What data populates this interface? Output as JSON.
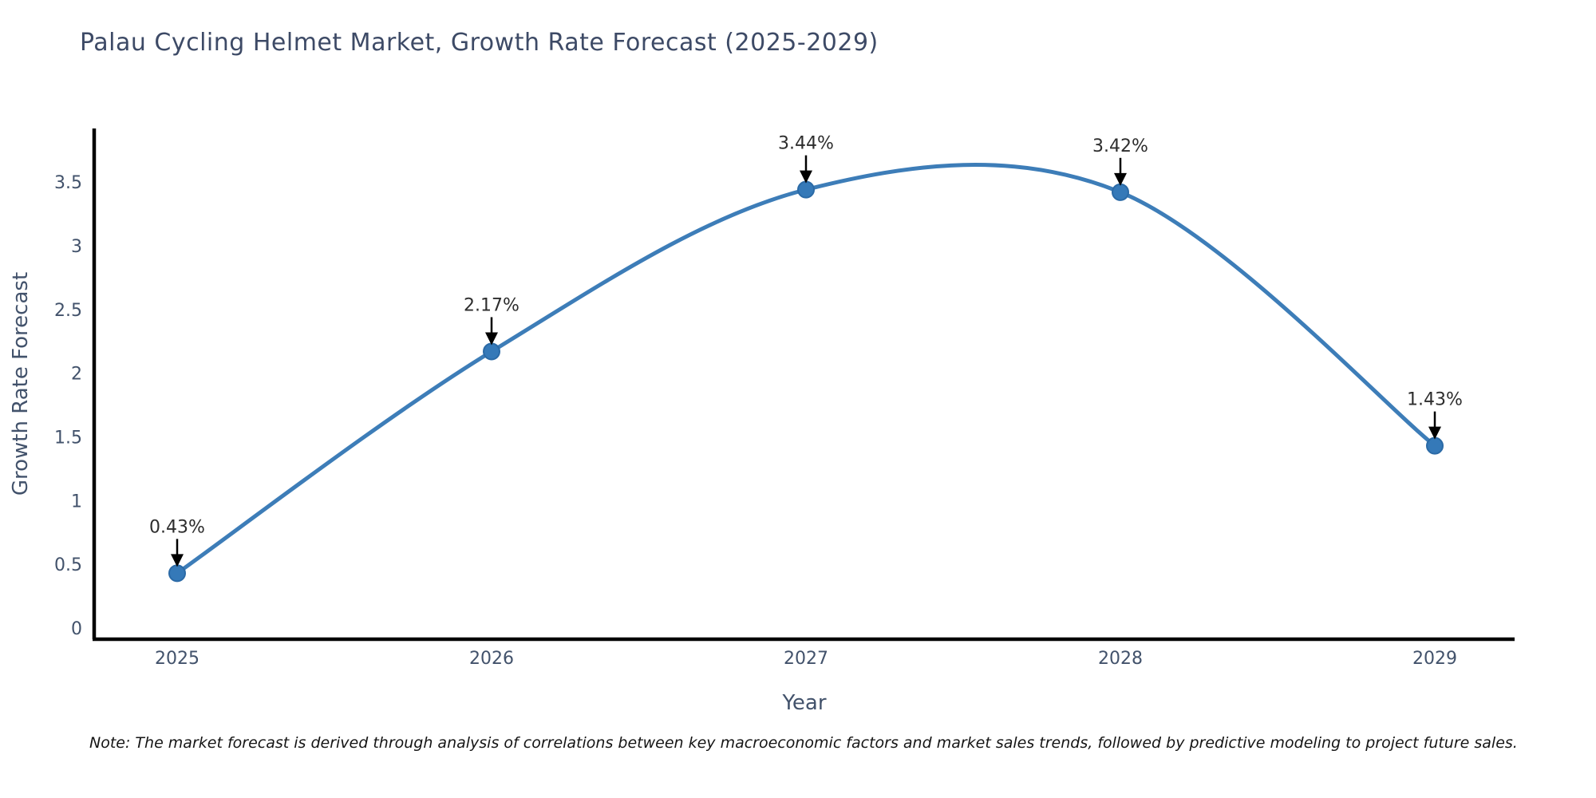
{
  "title": "Palau Cycling Helmet Market, Growth Rate Forecast (2025-2029)",
  "note": "Note: The market forecast is derived through analysis of correlations between key macroeconomic factors and market sales trends, followed by predictive modeling to project future sales.",
  "chart_data": {
    "type": "line",
    "title": "Palau Cycling Helmet Market, Growth Rate Forecast (2025-2029)",
    "x": [
      2025,
      2026,
      2027,
      2028,
      2029
    ],
    "values": [
      0.43,
      2.17,
      3.44,
      3.42,
      1.43
    ],
    "point_labels": [
      "0.43%",
      "2.17%",
      "3.44%",
      "3.42%",
      "1.43%"
    ],
    "x_ticks": [
      "2025",
      "2026",
      "2027",
      "2028",
      "2029"
    ],
    "y_ticks": [
      0,
      0.5,
      1,
      1.5,
      2,
      2.5,
      3,
      3.5
    ],
    "xlabel": "Year",
    "ylabel": "Growth Rate Forecast",
    "ylim": [
      -0.09,
      3.92
    ],
    "grid": false,
    "legend_position": "none",
    "smooth": true,
    "line_color": "#3d7db8",
    "marker_color": "#3579b8",
    "marker_edge_color": "#2b6aa6",
    "axis_color": "#000000",
    "tick_label_color": "#42526b",
    "annotation_color": "#2d2d2d",
    "annotation_arrow_color": "#000000"
  }
}
